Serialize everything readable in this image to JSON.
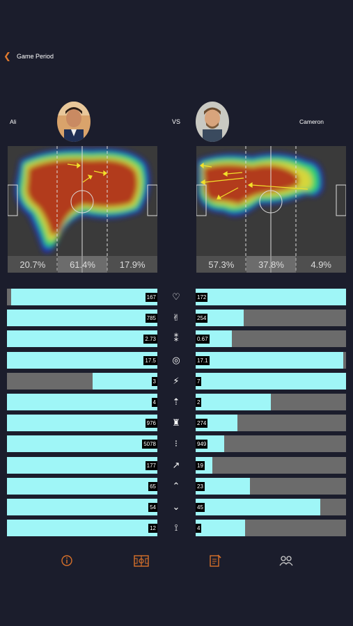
{
  "header": {
    "back_icon": "chevron-left-icon",
    "title": "Game Period"
  },
  "players": {
    "left": {
      "name": "Ali",
      "zones": [
        "20.7%",
        "61.4%",
        "17.9%"
      ]
    },
    "right": {
      "name": "Cameron",
      "zones": [
        "57.3%",
        "37.8%",
        "4.9%"
      ]
    },
    "vs": "VS"
  },
  "stats": [
    {
      "icon": "heart-rate-icon",
      "left": "167",
      "right": "172",
      "left_fill": 0.97,
      "right_fill": 1.0
    },
    {
      "icon": "peace-hand-icon",
      "left": "785",
      "right": "254",
      "left_fill": 1.0,
      "right_fill": 0.32
    },
    {
      "icon": "footprints-icon",
      "left": "2.73",
      "right": "0.67",
      "left_fill": 1.0,
      "right_fill": 0.24
    },
    {
      "icon": "speedometer-icon",
      "left": "17.5",
      "right": "17.1",
      "left_fill": 1.0,
      "right_fill": 0.98
    },
    {
      "icon": "sprint-icon",
      "left": "3",
      "right": "7",
      "left_fill": 0.43,
      "right_fill": 1.0
    },
    {
      "icon": "jump-icon",
      "left": "4",
      "right": "2",
      "left_fill": 1.0,
      "right_fill": 0.5
    },
    {
      "icon": "strength-icon",
      "left": "976",
      "right": "274",
      "left_fill": 1.0,
      "right_fill": 0.28
    },
    {
      "icon": "steps-icon",
      "left": "5078",
      "right": "949",
      "left_fill": 1.0,
      "right_fill": 0.19
    },
    {
      "icon": "trend-up-icon",
      "left": "177",
      "right": "19",
      "left_fill": 1.0,
      "right_fill": 0.11
    },
    {
      "icon": "chevron-up-icon",
      "left": "65",
      "right": "23",
      "left_fill": 1.0,
      "right_fill": 0.36
    },
    {
      "icon": "chevron-down-icon",
      "left": "54",
      "right": "45",
      "left_fill": 1.0,
      "right_fill": 0.83
    },
    {
      "icon": "kick-icon",
      "left": "12",
      "right": "4",
      "left_fill": 1.0,
      "right_fill": 0.33
    }
  ],
  "tabbar": [
    "info-icon",
    "pitch-icon",
    "notes-icon",
    "compare-icon"
  ],
  "colors": {
    "fill": "#9ff6f7",
    "empty": "#6b6b6b",
    "accent": "#e07a2e",
    "background": "#1b1d2c"
  }
}
